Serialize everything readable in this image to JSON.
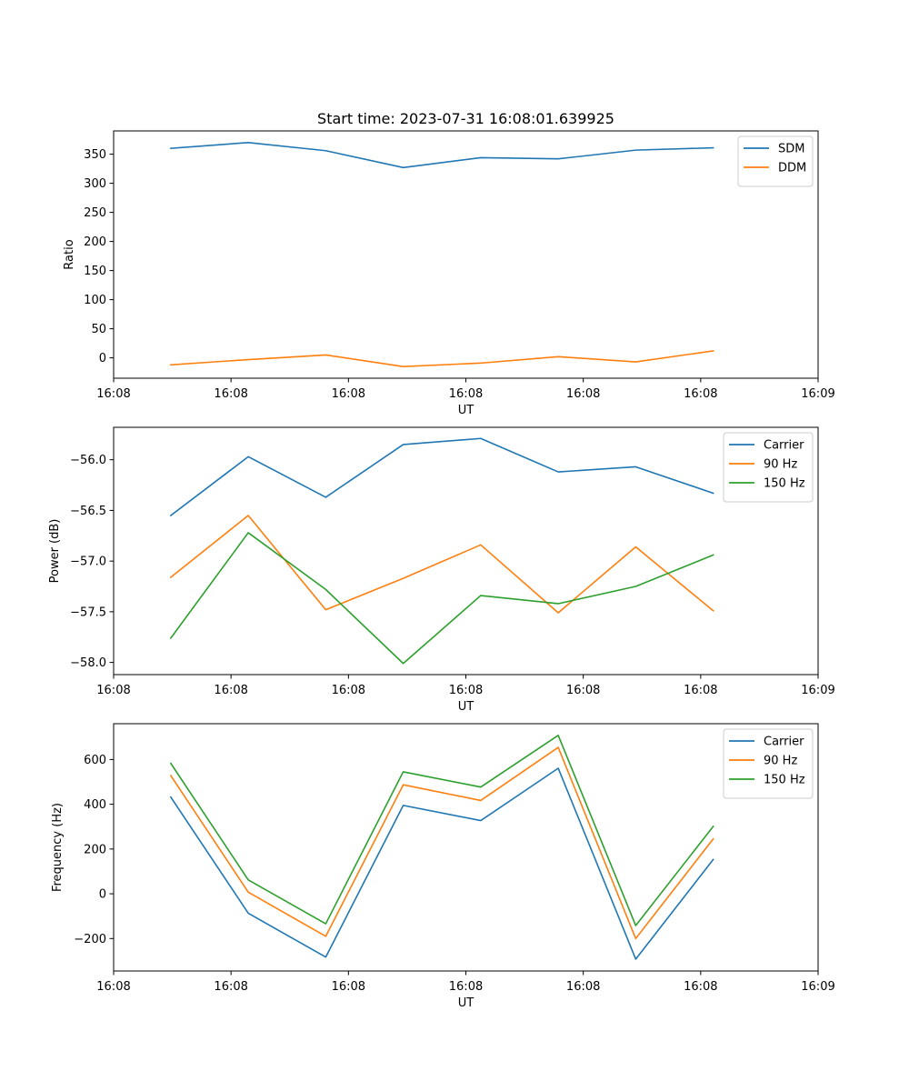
{
  "figure": {
    "title": "Start time: 2023-07-31 16:08:01.639925"
  },
  "chart_data": [
    {
      "type": "line",
      "xlabel": "UT",
      "ylabel": "Ratio",
      "xlim": [
        0,
        9
      ],
      "x_tick_values": [
        0,
        1.5,
        3,
        4.5,
        6,
        7.5,
        9
      ],
      "x_tick_labels": [
        "16:08",
        "16:08",
        "16:08",
        "16:08",
        "16:08",
        "16:08",
        "16:09"
      ],
      "ylim": [
        -35,
        390
      ],
      "y_ticks": [
        0,
        50,
        100,
        150,
        200,
        250,
        300,
        350
      ],
      "y_tick_labels": [
        "0",
        "50",
        "100",
        "150",
        "200",
        "250",
        "300",
        "350"
      ],
      "legend_position": "top-right",
      "x": [
        0.73,
        1.72,
        2.71,
        3.7,
        4.69,
        5.68,
        6.67,
        7.66
      ],
      "series": [
        {
          "name": "SDM",
          "color": "#1f77b4",
          "values": [
            360,
            370,
            356,
            327,
            344,
            342,
            357,
            361
          ]
        },
        {
          "name": "DDM",
          "color": "#ff7f0e",
          "values": [
            -12,
            -3,
            5,
            -15,
            -9,
            2,
            -7,
            12
          ]
        }
      ]
    },
    {
      "type": "line",
      "xlabel": "UT",
      "ylabel": "Power (dB)",
      "xlim": [
        0,
        9
      ],
      "x_tick_values": [
        0,
        1.5,
        3,
        4.5,
        6,
        7.5,
        9
      ],
      "x_tick_labels": [
        "16:08",
        "16:08",
        "16:08",
        "16:08",
        "16:08",
        "16:08",
        "16:09"
      ],
      "ylim": [
        -58.12,
        -55.68
      ],
      "y_ticks": [
        -58.0,
        -57.5,
        -57.0,
        -56.5,
        -56.0
      ],
      "y_tick_labels": [
        "−58.0",
        "−57.5",
        "−57.0",
        "−56.5",
        "−56.0"
      ],
      "legend_position": "top-right",
      "x": [
        0.73,
        1.72,
        2.71,
        3.7,
        4.69,
        5.68,
        6.67,
        7.66
      ],
      "series": [
        {
          "name": "Carrier",
          "color": "#1f77b4",
          "values": [
            -56.55,
            -55.97,
            -56.37,
            -55.85,
            -55.79,
            -56.12,
            -56.07,
            -56.33
          ]
        },
        {
          "name": "90 Hz",
          "color": "#ff7f0e",
          "values": [
            -57.16,
            -56.55,
            -57.48,
            -57.17,
            -56.84,
            -57.51,
            -56.86,
            -57.49
          ]
        },
        {
          "name": "150 Hz",
          "color": "#2ca02c",
          "values": [
            -57.76,
            -56.72,
            -57.28,
            -58.01,
            -57.34,
            -57.42,
            -57.25,
            -56.94
          ]
        }
      ]
    },
    {
      "type": "line",
      "xlabel": "UT",
      "ylabel": "Frequency (Hz)",
      "xlim": [
        0,
        9
      ],
      "x_tick_values": [
        0,
        1.5,
        3,
        4.5,
        6,
        7.5,
        9
      ],
      "x_tick_labels": [
        "16:08",
        "16:08",
        "16:08",
        "16:08",
        "16:08",
        "16:08",
        "16:09"
      ],
      "ylim": [
        -345,
        760
      ],
      "y_ticks": [
        -200,
        0,
        200,
        400,
        600
      ],
      "y_tick_labels": [
        "−200",
        "0",
        "200",
        "400",
        "600"
      ],
      "legend_position": "top-right",
      "x": [
        0.73,
        1.72,
        2.71,
        3.7,
        4.69,
        5.68,
        6.67,
        7.66
      ],
      "series": [
        {
          "name": "Carrier",
          "color": "#1f77b4",
          "values": [
            432,
            -87,
            -283,
            395,
            327,
            561,
            -292,
            153
          ]
        },
        {
          "name": "90 Hz",
          "color": "#ff7f0e",
          "values": [
            528,
            7,
            -190,
            487,
            417,
            654,
            -200,
            245
          ]
        },
        {
          "name": "150 Hz",
          "color": "#2ca02c",
          "values": [
            583,
            62,
            -134,
            545,
            477,
            708,
            -142,
            301
          ]
        }
      ]
    }
  ]
}
